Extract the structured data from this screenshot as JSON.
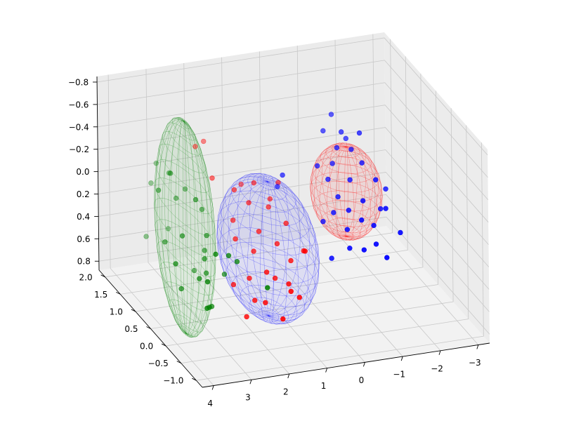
{
  "chart_data": {
    "type": "scatter",
    "projection": "3d",
    "title": "",
    "xlabel": "",
    "ylabel": "",
    "zlabel": "",
    "grid": true,
    "xlim": [
      -3.3,
      4.3
    ],
    "ylim": [
      -1.2,
      2.2
    ],
    "zlim": [
      -0.85,
      0.88
    ],
    "z_axis_inverted": true,
    "x_ticks": [
      4,
      3,
      2,
      1,
      0,
      -1,
      -2,
      -3
    ],
    "x_tick_labels": [
      "4",
      "3",
      "2",
      "1",
      "0",
      "−1",
      "−2",
      "−3"
    ],
    "y_ticks": [
      2.0,
      1.5,
      1.0,
      0.5,
      0.0,
      -0.5,
      -1.0
    ],
    "y_tick_labels": [
      "2.0",
      "1.5",
      "1.0",
      "0.5",
      "0.0",
      "−0.5",
      "−1.0"
    ],
    "z_ticks": [
      -0.8,
      -0.6,
      -0.4,
      -0.2,
      0.0,
      0.2,
      0.4,
      0.6,
      0.8
    ],
    "z_tick_labels": [
      "−0.8",
      "−0.6",
      "−0.4",
      "−0.2",
      "0.0",
      "0.2",
      "0.4",
      "0.6",
      "0.8"
    ],
    "colors": {
      "green": "#008000",
      "blue": "#0000ff",
      "red": "#ff0000"
    },
    "ellipsoids": [
      {
        "color": "#008000",
        "center": [
          2.85,
          1.15,
          0.25
        ],
        "semi_axes": [
          0.45,
          0.85,
          0.95
        ],
        "opacity": 0.35
      },
      {
        "color": "#0000ff",
        "center": [
          0.9,
          0.85,
          0.45
        ],
        "semi_axes": [
          1.1,
          1.0,
          0.6
        ],
        "opacity": 0.35
      },
      {
        "color": "#ff0000",
        "center": [
          -1.3,
          1.0,
          0.1
        ],
        "semi_axes": [
          0.85,
          0.55,
          0.4
        ],
        "opacity": 0.35
      }
    ],
    "series": [
      {
        "color": "#008000",
        "points": [
          [
            3.1,
            1.3,
            -0.2
          ],
          [
            2.9,
            1.6,
            -0.1
          ],
          [
            2.6,
            1.1,
            0.0
          ],
          [
            2.8,
            1.5,
            0.1
          ],
          [
            3.2,
            0.8,
            0.2
          ],
          [
            2.4,
            1.0,
            0.3
          ],
          [
            2.7,
            0.7,
            0.4
          ],
          [
            3.0,
            0.5,
            0.5
          ],
          [
            2.3,
            1.2,
            0.5
          ],
          [
            2.5,
            0.9,
            0.6
          ],
          [
            3.3,
            1.7,
            0.0
          ],
          [
            2.2,
            1.4,
            0.2
          ],
          [
            3.5,
            1.0,
            0.3
          ],
          [
            2.9,
            0.3,
            0.7
          ],
          [
            2.6,
            0.6,
            0.8
          ],
          [
            3.4,
            0.6,
            0.6
          ],
          [
            2.1,
            0.8,
            0.6
          ],
          [
            3.6,
            1.5,
            0.4
          ],
          [
            3.0,
            1.9,
            -0.1
          ],
          [
            2.4,
            1.7,
            0.1
          ],
          [
            3.7,
            0.4,
            0.3
          ],
          [
            3.1,
            0.1,
            0.4
          ],
          [
            2.8,
            0.2,
            0.2
          ],
          [
            2.0,
            0.5,
            0.4
          ],
          [
            1.6,
            0.0,
            0.5
          ],
          [
            3.2,
            0.0,
            0.6
          ],
          [
            2.5,
            1.3,
            0.7
          ],
          [
            2.3,
            0.4,
            0.3
          ],
          [
            3.5,
            1.2,
            -0.1
          ],
          [
            2.7,
            1.9,
            0.5
          ]
        ]
      },
      {
        "color": "#ff0000",
        "points": [
          [
            2.2,
            1.6,
            -0.3
          ],
          [
            1.9,
            1.7,
            -0.3
          ],
          [
            2.0,
            1.3,
            -0.1
          ],
          [
            1.5,
            1.2,
            0.0
          ],
          [
            1.7,
            1.0,
            0.2
          ],
          [
            1.2,
            1.1,
            0.1
          ],
          [
            0.9,
            1.3,
            0.0
          ],
          [
            0.6,
            1.2,
            0.2
          ],
          [
            1.1,
            0.9,
            0.3
          ],
          [
            1.4,
            0.7,
            0.4
          ],
          [
            0.7,
            0.8,
            0.4
          ],
          [
            0.3,
            1.0,
            0.3
          ],
          [
            1.6,
            0.6,
            0.6
          ],
          [
            1.0,
            0.5,
            0.6
          ],
          [
            0.5,
            0.6,
            0.5
          ],
          [
            1.3,
            0.4,
            0.5
          ],
          [
            0.8,
            0.3,
            0.6
          ],
          [
            0.2,
            0.5,
            0.4
          ],
          [
            1.8,
            0.8,
            0.3
          ],
          [
            0.4,
            1.4,
            0.2
          ],
          [
            1.5,
            0.2,
            0.7
          ],
          [
            0.9,
            0.1,
            0.6
          ],
          [
            1.2,
            0.0,
            0.8
          ],
          [
            0.6,
            0.2,
            0.7
          ],
          [
            2.1,
            0.5,
            0.6
          ],
          [
            1.7,
            0.3,
            0.7
          ],
          [
            0.0,
            0.8,
            0.5
          ],
          [
            0.1,
            1.5,
            0.1
          ],
          [
            1.0,
            1.6,
            0.1
          ],
          [
            2.0,
            0.2,
            0.8
          ]
        ]
      },
      {
        "color": "#0000ff",
        "points": [
          [
            -1.3,
            1.3,
            -0.2
          ],
          [
            -1.1,
            1.2,
            -0.1
          ],
          [
            -1.6,
            1.2,
            -0.2
          ],
          [
            -1.4,
            1.0,
            0.0
          ],
          [
            -1.0,
            0.9,
            0.1
          ],
          [
            -1.8,
            1.1,
            -0.1
          ],
          [
            -1.2,
            0.8,
            0.2
          ],
          [
            -1.5,
            0.7,
            0.1
          ],
          [
            -0.9,
            1.1,
            0.0
          ],
          [
            -2.0,
            0.9,
            0.0
          ],
          [
            -1.7,
            0.6,
            0.3
          ],
          [
            -1.3,
            0.5,
            0.2
          ],
          [
            -1.0,
            0.6,
            0.3
          ],
          [
            -1.9,
            1.3,
            -0.3
          ],
          [
            -1.5,
            1.4,
            -0.3
          ],
          [
            -0.8,
            0.8,
            0.2
          ],
          [
            -2.1,
            0.7,
            0.2
          ],
          [
            -1.6,
            0.4,
            0.4
          ],
          [
            -1.2,
            0.3,
            0.4
          ],
          [
            -0.7,
            1.2,
            -0.1
          ],
          [
            -1.4,
            1.6,
            -0.4
          ],
          [
            -1.8,
            0.3,
            0.5
          ],
          [
            -2.2,
            1.0,
            0.3
          ],
          [
            -0.9,
            0.4,
            0.4
          ],
          [
            -1.1,
            1.5,
            -0.3
          ],
          [
            -2.4,
            0.6,
            0.4
          ],
          [
            -1.7,
            1.5,
            -0.2
          ],
          [
            -0.6,
            0.9,
            0.3
          ],
          [
            -2.5,
            1.2,
            0.2
          ],
          [
            -0.5,
            0.5,
            0.5
          ],
          [
            0.3,
            1.1,
            -0.1
          ],
          [
            0.2,
            1.4,
            0.1
          ]
        ]
      }
    ]
  }
}
